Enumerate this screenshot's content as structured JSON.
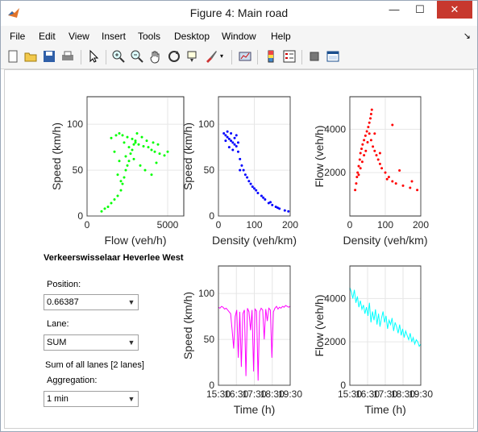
{
  "window": {
    "title": "Figure 4: Main road",
    "minimize": "—",
    "maximize": "☐",
    "close": "✕"
  },
  "menu": {
    "items": [
      "File",
      "Edit",
      "View",
      "Insert",
      "Tools",
      "Desktop",
      "Window",
      "Help"
    ],
    "dock_arrow": "↘"
  },
  "toolbar": {
    "icons": [
      "new-figure-icon",
      "open-icon",
      "save-icon",
      "print-icon",
      "pointer-icon",
      "zoom-in-icon",
      "zoom-out-icon",
      "pan-icon",
      "rotate-icon",
      "data-cursor-icon",
      "brush-icon",
      "link-plot-icon",
      "colorbar-icon",
      "legend-icon",
      "hide-plot-tools-icon",
      "show-plot-tools-icon"
    ]
  },
  "controls": {
    "location": "Verkeerswisselaar Heverlee West",
    "position_label": "Position:",
    "position_value": "0.66387",
    "lane_label": "Lane:",
    "lane_value": "SUM",
    "lanes_info": "Sum of all lanes [2 lanes]",
    "aggregation_label": "Aggregation:",
    "aggregation_value": "1 min"
  },
  "chart_data": [
    {
      "type": "scatter",
      "id": "flow-speed",
      "xlabel": "Flow (veh/h)",
      "ylabel": "Speed (km/h)",
      "xlim": [
        0,
        6000
      ],
      "ylim": [
        0,
        130
      ],
      "xticks": [
        0,
        5000
      ],
      "yticks": [
        0,
        50,
        100
      ],
      "color": "#00ff00",
      "grid": true,
      "points": [
        [
          900,
          5
        ],
        [
          1100,
          8
        ],
        [
          1300,
          10
        ],
        [
          1500,
          14
        ],
        [
          1700,
          18
        ],
        [
          1900,
          22
        ],
        [
          2100,
          28
        ],
        [
          2200,
          35
        ],
        [
          2300,
          42
        ],
        [
          2400,
          50
        ],
        [
          2500,
          55
        ],
        [
          2600,
          60
        ],
        [
          2700,
          68
        ],
        [
          2800,
          72
        ],
        [
          2900,
          78
        ],
        [
          3000,
          82
        ],
        [
          1500,
          85
        ],
        [
          1800,
          88
        ],
        [
          2000,
          90
        ],
        [
          2200,
          88
        ],
        [
          2500,
          86
        ],
        [
          2800,
          84
        ],
        [
          3000,
          80
        ],
        [
          3200,
          78
        ],
        [
          3500,
          76
        ],
        [
          3800,
          75
        ],
        [
          4000,
          72
        ],
        [
          4200,
          70
        ],
        [
          4500,
          68
        ],
        [
          4800,
          66
        ],
        [
          5000,
          70
        ],
        [
          2300,
          80
        ],
        [
          2600,
          75
        ],
        [
          2000,
          60
        ],
        [
          2400,
          65
        ],
        [
          2900,
          62
        ],
        [
          3300,
          55
        ],
        [
          3600,
          50
        ],
        [
          4000,
          45
        ],
        [
          4300,
          58
        ],
        [
          3100,
          90
        ],
        [
          3400,
          86
        ],
        [
          3700,
          82
        ],
        [
          4100,
          80
        ],
        [
          4400,
          78
        ],
        [
          1700,
          70
        ],
        [
          1900,
          45
        ],
        [
          2100,
          38
        ]
      ]
    },
    {
      "type": "scatter",
      "id": "density-speed",
      "xlabel": "Density (veh/km)",
      "ylabel": "Speed (km/h)",
      "xlim": [
        0,
        200
      ],
      "ylim": [
        0,
        130
      ],
      "xticks": [
        0,
        100,
        200
      ],
      "yticks": [
        0,
        50,
        100
      ],
      "color": "#0000ff",
      "grid": true,
      "points": [
        [
          15,
          90
        ],
        [
          20,
          88
        ],
        [
          25,
          86
        ],
        [
          30,
          84
        ],
        [
          35,
          82
        ],
        [
          40,
          80
        ],
        [
          45,
          78
        ],
        [
          50,
          76
        ],
        [
          25,
          92
        ],
        [
          35,
          90
        ],
        [
          45,
          85
        ],
        [
          55,
          70
        ],
        [
          60,
          62
        ],
        [
          65,
          55
        ],
        [
          70,
          50
        ],
        [
          80,
          42
        ],
        [
          90,
          35
        ],
        [
          100,
          30
        ],
        [
          110,
          25
        ],
        [
          120,
          22
        ],
        [
          130,
          18
        ],
        [
          140,
          14
        ],
        [
          150,
          12
        ],
        [
          160,
          10
        ],
        [
          170,
          8
        ],
        [
          185,
          6
        ],
        [
          195,
          5
        ],
        [
          30,
          75
        ],
        [
          40,
          72
        ],
        [
          55,
          80
        ],
        [
          60,
          50
        ],
        [
          75,
          45
        ],
        [
          85,
          38
        ],
        [
          95,
          32
        ],
        [
          105,
          28
        ],
        [
          125,
          20
        ],
        [
          145,
          15
        ],
        [
          165,
          9
        ],
        [
          20,
          82
        ],
        [
          50,
          88
        ]
      ]
    },
    {
      "type": "scatter",
      "id": "density-flow",
      "xlabel": "Density (veh/km)",
      "ylabel": "Flow (veh/h)",
      "xlim": [
        0,
        200
      ],
      "ylim": [
        0,
        5500
      ],
      "xticks": [
        0,
        100,
        200
      ],
      "yticks": [
        2000,
        4000
      ],
      "color": "#ff0000",
      "grid": true,
      "points": [
        [
          15,
          1200
        ],
        [
          18,
          1500
        ],
        [
          20,
          1800
        ],
        [
          22,
          2000
        ],
        [
          25,
          2300
        ],
        [
          28,
          2600
        ],
        [
          30,
          2900
        ],
        [
          33,
          3100
        ],
        [
          36,
          3300
        ],
        [
          40,
          3500
        ],
        [
          44,
          3700
        ],
        [
          48,
          3900
        ],
        [
          52,
          4100
        ],
        [
          55,
          4300
        ],
        [
          58,
          4500
        ],
        [
          60,
          4700
        ],
        [
          62,
          4900
        ],
        [
          55,
          3800
        ],
        [
          60,
          3500
        ],
        [
          65,
          3200
        ],
        [
          70,
          3000
        ],
        [
          75,
          2800
        ],
        [
          80,
          2600
        ],
        [
          85,
          2400
        ],
        [
          90,
          2200
        ],
        [
          100,
          2000
        ],
        [
          110,
          1800
        ],
        [
          120,
          1600
        ],
        [
          130,
          1500
        ],
        [
          150,
          1400
        ],
        [
          170,
          1300
        ],
        [
          190,
          1200
        ],
        [
          25,
          1900
        ],
        [
          30,
          2200
        ],
        [
          35,
          2500
        ],
        [
          40,
          2800
        ],
        [
          45,
          3000
        ],
        [
          50,
          3400
        ],
        [
          70,
          3800
        ],
        [
          85,
          2900
        ],
        [
          105,
          1700
        ],
        [
          140,
          2100
        ],
        [
          175,
          1600
        ],
        [
          120,
          4200
        ]
      ]
    },
    {
      "type": "line",
      "id": "time-speed",
      "xlabel": "Time (h)",
      "ylabel": "Speed (km/h)",
      "ylim": [
        0,
        130
      ],
      "yticks": [
        0,
        50,
        100
      ],
      "xtick_labels": [
        "15:30",
        "16:30",
        "17:30",
        "18:30",
        "19:30"
      ],
      "color": "#ff00ff",
      "grid": true,
      "values": [
        85,
        84,
        86,
        85,
        83,
        84,
        82,
        80,
        78,
        60,
        40,
        75,
        82,
        30,
        80,
        20,
        78,
        82,
        10,
        84,
        80,
        60,
        82,
        15,
        83,
        81,
        5,
        80,
        84,
        82,
        50,
        83,
        70,
        84,
        82,
        30,
        80,
        84,
        86,
        83,
        85,
        84,
        86,
        85,
        87,
        86,
        85,
        86
      ]
    },
    {
      "type": "line",
      "id": "time-flow",
      "xlabel": "Time (h)",
      "ylabel": "Flow (veh/h)",
      "ylim": [
        0,
        5500
      ],
      "yticks": [
        0,
        2000,
        4000
      ],
      "xtick_labels": [
        "15:30",
        "16:30",
        "17:30",
        "18:30",
        "19:30"
      ],
      "color": "#00ffff",
      "grid": true,
      "values": [
        4500,
        4300,
        4000,
        4400,
        3800,
        4100,
        3600,
        3900,
        3500,
        3700,
        3300,
        3600,
        3200,
        3800,
        2900,
        3400,
        3000,
        3500,
        2800,
        3300,
        2700,
        3100,
        3400,
        2900,
        3200,
        2600,
        3000,
        2800,
        3100,
        2500,
        2900,
        2700,
        2400,
        2800,
        2300,
        2600,
        2200,
        2500,
        2300,
        2100,
        2400,
        2000,
        2200,
        1900,
        2100,
        2000,
        1800,
        1900
      ]
    }
  ]
}
